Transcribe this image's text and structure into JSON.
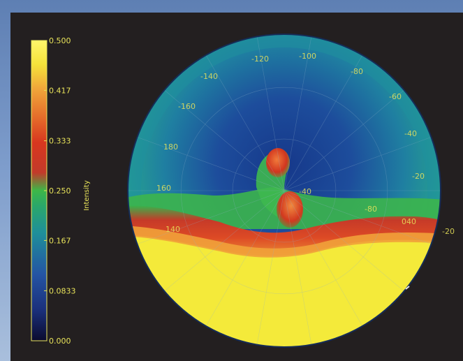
{
  "chart_data": {
    "type": "heatmap",
    "projection": "polar",
    "colorbar": {
      "label": "Intensity",
      "min": 0.0,
      "max": 0.5,
      "ticks": [
        "0.000",
        "0.0833",
        "0.167",
        "0.250",
        "0.333",
        "0.417",
        "0.500"
      ],
      "colormap": [
        "#0b0b2e",
        "#1a2f7a",
        "#2454a4",
        "#1f8f9a",
        "#2aa86a",
        "#3db748",
        "#c23a2a",
        "#d8371f",
        "#e56a2a",
        "#f0a63a",
        "#f5e23a",
        "#fff66b"
      ]
    },
    "polar_labels": [
      "-120",
      "-100",
      "-140",
      "-80",
      "-160",
      "-60",
      "180",
      "-40",
      "160",
      "-20",
      "-80",
      "040",
      "140",
      "-20",
      "-40"
    ]
  }
}
